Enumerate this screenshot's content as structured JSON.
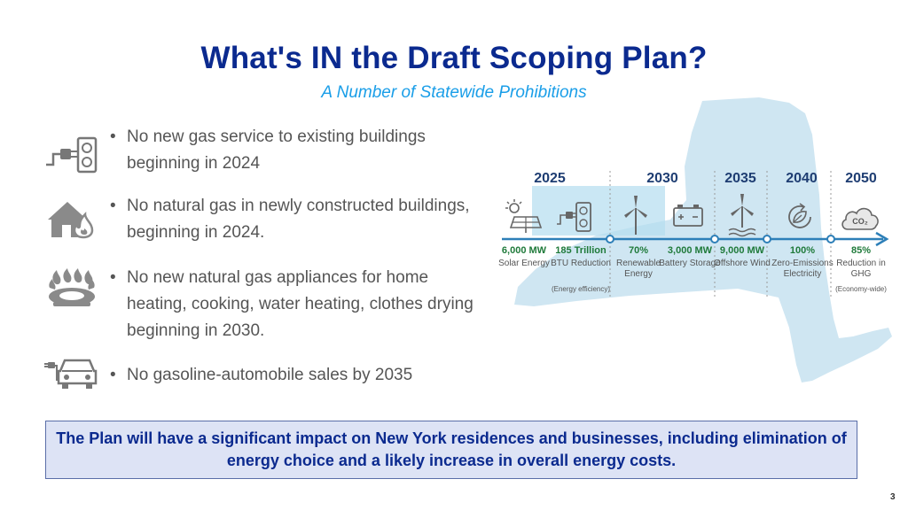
{
  "slide": {
    "title": "What's IN the Draft Scoping Plan?",
    "subtitle": "A Number of Statewide Prohibitions",
    "page_number": "3"
  },
  "bullets": [
    {
      "icon": "outlet-plug-icon",
      "text": "No new gas service to existing buildings beginning in 2024"
    },
    {
      "icon": "house-flame-icon",
      "text": "No natural gas in newly constructed buildings, beginning in 2024."
    },
    {
      "icon": "gas-burner-icon",
      "text": "No new natural gas appliances for home heating, cooking, water heating, clothes drying beginning in 2030."
    },
    {
      "icon": "electric-car-icon",
      "text": "No gasoline-automobile sales by 2035"
    }
  ],
  "bullet_marker": "•",
  "timeline": {
    "years": [
      "2025",
      "2030",
      "2035",
      "2040",
      "2050"
    ],
    "milestones": [
      {
        "icon": "solar-panel-icon",
        "value": "6,000 MW",
        "label": "Solar Energy",
        "note": ""
      },
      {
        "icon": "outlet-icon",
        "value": "185 Trillion",
        "label": "BTU Reduction",
        "note": "(Energy efficiency)"
      },
      {
        "icon": "wind-turbine-icon",
        "value": "70%",
        "label": "Renewable Energy",
        "note": ""
      },
      {
        "icon": "battery-icon",
        "value": "3,000 MW",
        "label": "Battery Storage",
        "note": ""
      },
      {
        "icon": "offshore-wind-icon",
        "value": "9,000 MW",
        "label": "Offshore Wind",
        "note": ""
      },
      {
        "icon": "leaf-cycle-icon",
        "value": "100%",
        "label": "Zero-Emissions Electricity",
        "note": ""
      },
      {
        "icon": "co2-cloud-icon",
        "value": "85%",
        "label": "Reduction in GHG",
        "note": "(Economy-wide)"
      }
    ],
    "co2_label": "CO₂",
    "colors": {
      "years": "#1e3d72",
      "values": "#1f7a3a",
      "arrow": "#2d7fb8",
      "map": "#cfe6f2",
      "highlight": "#b4ddf0"
    }
  },
  "callout": {
    "text": "The Plan will have a significant impact on New York residences and businesses, including elimination of energy choice and a likely increase in overall energy costs."
  }
}
